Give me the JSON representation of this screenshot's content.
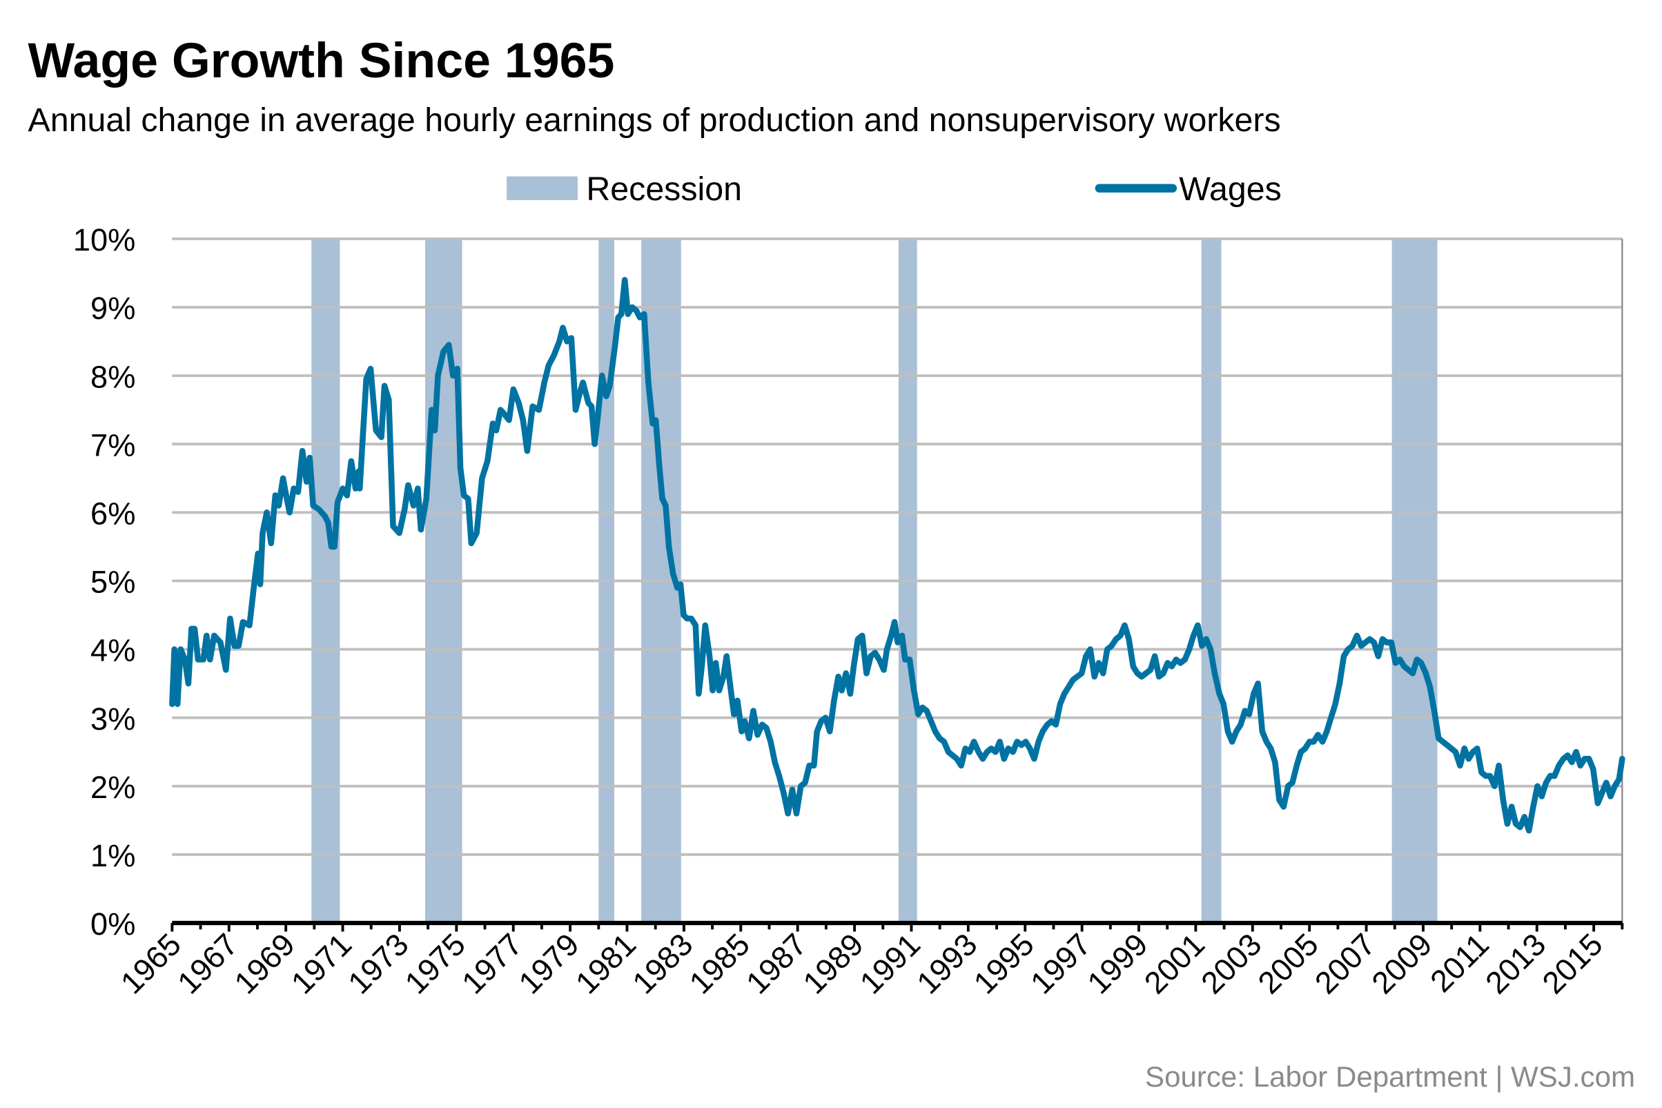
{
  "chart_data": {
    "type": "line",
    "title": "Wage Growth Since 1965",
    "subtitle": "Annual change in average hourly earnings of production and nonsupervisory workers",
    "xlabel": "",
    "ylabel": "",
    "xlim": [
      1965,
      2016
    ],
    "ylim": [
      0,
      10
    ],
    "grid": true,
    "legend_position": "top-center",
    "y_ticks": [
      0,
      1,
      2,
      3,
      4,
      5,
      6,
      7,
      8,
      9,
      10
    ],
    "y_tick_labels": [
      "0%",
      "1%",
      "2%",
      "3%",
      "4%",
      "5%",
      "6%",
      "7%",
      "8%",
      "9%",
      "10%"
    ],
    "x_ticks": [
      1965,
      1967,
      1969,
      1971,
      1973,
      1975,
      1977,
      1979,
      1981,
      1983,
      1985,
      1987,
      1989,
      1991,
      1993,
      1995,
      1997,
      1999,
      2001,
      2003,
      2005,
      2007,
      2009,
      2011,
      2013,
      2015
    ],
    "x_tick_labels": [
      "1965",
      "1967",
      "1969",
      "1971",
      "1973",
      "1975",
      "1977",
      "1979",
      "1981",
      "1983",
      "1985",
      "1987",
      "1989",
      "1991",
      "1993",
      "1995",
      "1997",
      "1999",
      "2001",
      "2003",
      "2005",
      "2007",
      "2009",
      "2011",
      "2013",
      "2015"
    ],
    "legend": [
      {
        "name": "Recession",
        "kind": "band",
        "color": "#A9C0D6"
      },
      {
        "name": "Wages",
        "kind": "line",
        "color": "#0073A3"
      }
    ],
    "recessions": [
      [
        1969.9,
        1970.9
      ],
      [
        1973.9,
        1975.2
      ],
      [
        1980.0,
        1980.55
      ],
      [
        1981.5,
        1982.9
      ],
      [
        1990.55,
        1991.2
      ],
      [
        2001.2,
        2001.9
      ],
      [
        2007.9,
        2009.5
      ]
    ],
    "series": [
      {
        "name": "Wages",
        "color": "#0073A3",
        "x": [
          1965.0,
          1965.08,
          1965.19,
          1965.3,
          1965.45,
          1965.57,
          1965.68,
          1965.79,
          1965.91,
          1966.1,
          1966.21,
          1966.33,
          1966.48,
          1966.7,
          1966.89,
          1967.04,
          1967.19,
          1967.34,
          1967.49,
          1967.72,
          1967.87,
          1968.02,
          1968.1,
          1968.18,
          1968.33,
          1968.48,
          1968.63,
          1968.75,
          1968.9,
          1969.01,
          1969.13,
          1969.28,
          1969.43,
          1969.58,
          1969.73,
          1969.84,
          1969.96,
          1970.15,
          1970.37,
          1970.49,
          1970.6,
          1970.71,
          1970.82,
          1971.0,
          1971.15,
          1971.3,
          1971.45,
          1971.56,
          1971.6,
          1971.83,
          1971.98,
          1972.17,
          1972.36,
          1972.47,
          1972.62,
          1972.77,
          1972.99,
          1973.18,
          1973.3,
          1973.49,
          1973.64,
          1973.75,
          1973.94,
          1974.13,
          1974.24,
          1974.35,
          1974.54,
          1974.73,
          1974.88,
          1975.03,
          1975.14,
          1975.26,
          1975.41,
          1975.52,
          1975.71,
          1975.9,
          1976.09,
          1976.28,
          1976.4,
          1976.55,
          1976.66,
          1976.85,
          1977.0,
          1977.19,
          1977.34,
          1977.49,
          1977.68,
          1977.9,
          1978.09,
          1978.24,
          1978.43,
          1978.62,
          1978.74,
          1978.89,
          1979.04,
          1979.19,
          1979.34,
          1979.45,
          1979.64,
          1979.75,
          1979.86,
          1979.97,
          1980.12,
          1980.27,
          1980.39,
          1980.58,
          1980.69,
          1980.8,
          1980.92,
          1981.03,
          1981.18,
          1981.33,
          1981.45,
          1981.6,
          1981.75,
          1981.9,
          1982.01,
          1982.13,
          1982.24,
          1982.36,
          1982.47,
          1982.62,
          1982.77,
          1982.88,
          1982.99,
          1983.11,
          1983.26,
          1983.41,
          1983.52,
          1983.63,
          1983.75,
          1983.9,
          1984.01,
          1984.12,
          1984.24,
          1984.39,
          1984.5,
          1984.65,
          1984.76,
          1984.88,
          1985.03,
          1985.14,
          1985.29,
          1985.44,
          1985.59,
          1985.75,
          1985.9,
          1986.05,
          1986.2,
          1986.35,
          1986.51,
          1986.66,
          1986.81,
          1986.96,
          1987.11,
          1987.26,
          1987.41,
          1987.57,
          1987.68,
          1987.83,
          1987.98,
          1988.13,
          1988.28,
          1988.43,
          1988.55,
          1988.7,
          1988.85,
          1988.97,
          1989.12,
          1989.27,
          1989.42,
          1989.57,
          1989.72,
          1989.87,
          1990.03,
          1990.14,
          1990.29,
          1990.41,
          1990.52,
          1990.67,
          1990.78,
          1990.94,
          1991.09,
          1991.24,
          1991.39,
          1991.54,
          1991.69,
          1991.84,
          1991.99,
          1992.15,
          1992.3,
          1992.45,
          1992.6,
          1992.75,
          1992.9,
          1993.05,
          1993.2,
          1993.36,
          1993.51,
          1993.66,
          1993.81,
          1993.96,
          1994.11,
          1994.26,
          1994.41,
          1994.57,
          1994.72,
          1994.87,
          1995.02,
          1995.17,
          1995.32,
          1995.47,
          1995.62,
          1995.78,
          1995.93,
          1996.08,
          1996.23,
          1996.38,
          1996.53,
          1996.68,
          1996.83,
          1996.99,
          1997.14,
          1997.29,
          1997.44,
          1997.59,
          1997.74,
          1997.89,
          1998.04,
          1998.2,
          1998.35,
          1998.5,
          1998.65,
          1998.8,
          1998.95,
          1999.1,
          1999.25,
          1999.41,
          1999.56,
          1999.71,
          1999.86,
          2000.01,
          2000.16,
          2000.31,
          2000.46,
          2000.62,
          2000.77,
          2000.92,
          2001.07,
          2001.22,
          2001.37,
          2001.52,
          2001.67,
          2001.83,
          2001.98,
          2002.13,
          2002.28,
          2002.43,
          2002.58,
          2002.73,
          2002.88,
          2003.04,
          2003.19,
          2003.34,
          2003.49,
          2003.64,
          2003.79,
          2003.94,
          2004.09,
          2004.25,
          2004.4,
          2004.55,
          2004.7,
          2004.85,
          2005.0,
          2005.15,
          2005.3,
          2005.46,
          2005.61,
          2005.76,
          2005.91,
          2006.06,
          2006.21,
          2006.36,
          2006.51,
          2006.67,
          2006.82,
          2006.97,
          2007.12,
          2007.27,
          2007.42,
          2007.57,
          2007.72,
          2007.88,
          2008.03,
          2008.18,
          2008.33,
          2008.48,
          2008.63,
          2008.78,
          2008.93,
          2009.09,
          2009.24,
          2009.39,
          2009.54,
          2009.69,
          2009.84,
          2009.99,
          2010.14,
          2010.3,
          2010.45,
          2010.6,
          2010.75,
          2010.9,
          2011.05,
          2011.2,
          2011.35,
          2011.51,
          2011.66,
          2011.81,
          2011.96,
          2012.11,
          2012.26,
          2012.41,
          2012.56,
          2012.72,
          2012.87,
          2013.02,
          2013.17,
          2013.32,
          2013.47,
          2013.62,
          2013.77,
          2013.93,
          2014.08,
          2014.23,
          2014.38,
          2014.53,
          2014.68,
          2014.83,
          2014.98,
          2015.14,
          2015.29,
          2015.44,
          2015.59,
          2015.74,
          2015.89,
          2016.0
        ],
        "values": [
          3.2,
          4.0,
          3.2,
          4.0,
          3.85,
          3.5,
          4.3,
          4.3,
          3.85,
          3.85,
          4.2,
          3.85,
          4.2,
          4.1,
          3.7,
          4.45,
          4.05,
          4.05,
          4.4,
          4.35,
          4.9,
          5.4,
          4.95,
          5.7,
          6.0,
          5.55,
          6.25,
          6.1,
          6.5,
          6.25,
          6.0,
          6.35,
          6.3,
          6.9,
          6.45,
          6.8,
          6.1,
          6.05,
          5.95,
          5.85,
          5.5,
          5.5,
          6.15,
          6.35,
          6.25,
          6.75,
          6.35,
          6.6,
          6.35,
          7.95,
          8.1,
          7.2,
          7.1,
          7.85,
          7.65,
          5.8,
          5.7,
          6.05,
          6.4,
          6.1,
          6.35,
          5.75,
          6.2,
          7.5,
          7.2,
          8.0,
          8.35,
          8.45,
          8.0,
          8.1,
          6.65,
          6.25,
          6.2,
          5.55,
          5.7,
          6.5,
          6.75,
          7.3,
          7.2,
          7.5,
          7.45,
          7.35,
          7.8,
          7.6,
          7.35,
          6.9,
          7.55,
          7.5,
          7.9,
          8.15,
          8.3,
          8.5,
          8.7,
          8.5,
          8.55,
          7.5,
          7.75,
          7.9,
          7.6,
          7.55,
          7.0,
          7.4,
          8.0,
          7.7,
          7.85,
          8.45,
          8.85,
          8.9,
          9.4,
          8.9,
          9.0,
          8.95,
          8.85,
          8.9,
          7.9,
          7.3,
          7.35,
          6.7,
          6.2,
          6.1,
          5.5,
          5.1,
          4.9,
          4.95,
          4.5,
          4.45,
          4.45,
          4.35,
          3.35,
          3.75,
          4.35,
          3.9,
          3.4,
          3.8,
          3.4,
          3.6,
          3.9,
          3.4,
          3.05,
          3.25,
          2.8,
          2.95,
          2.7,
          3.1,
          2.75,
          2.9,
          2.85,
          2.65,
          2.35,
          2.15,
          1.9,
          1.6,
          1.95,
          1.6,
          2.0,
          2.05,
          2.3,
          2.3,
          2.8,
          2.95,
          3.0,
          2.8,
          3.25,
          3.6,
          3.4,
          3.65,
          3.35,
          3.75,
          4.15,
          4.2,
          3.65,
          3.9,
          3.95,
          3.85,
          3.7,
          4.0,
          4.2,
          4.4,
          4.1,
          4.2,
          3.85,
          3.85,
          3.4,
          3.05,
          3.15,
          3.1,
          2.95,
          2.8,
          2.7,
          2.65,
          2.5,
          2.45,
          2.4,
          2.3,
          2.55,
          2.5,
          2.65,
          2.5,
          2.4,
          2.5,
          2.55,
          2.5,
          2.65,
          2.4,
          2.55,
          2.5,
          2.65,
          2.6,
          2.65,
          2.55,
          2.4,
          2.65,
          2.8,
          2.9,
          2.95,
          2.9,
          3.2,
          3.35,
          3.45,
          3.55,
          3.6,
          3.65,
          3.9,
          4.0,
          3.6,
          3.8,
          3.65,
          4.0,
          4.05,
          4.15,
          4.2,
          4.35,
          4.15,
          3.75,
          3.65,
          3.6,
          3.65,
          3.7,
          3.9,
          3.6,
          3.65,
          3.8,
          3.75,
          3.85,
          3.8,
          3.85,
          4.0,
          4.2,
          4.35,
          4.05,
          4.15,
          4.0,
          3.65,
          3.35,
          3.2,
          2.8,
          2.65,
          2.8,
          2.9,
          3.1,
          3.05,
          3.35,
          3.5,
          2.8,
          2.65,
          2.55,
          2.35,
          1.8,
          1.7,
          2.0,
          2.05,
          2.3,
          2.5,
          2.55,
          2.65,
          2.65,
          2.75,
          2.65,
          2.8,
          3.0,
          3.2,
          3.5,
          3.9,
          4.0,
          4.05,
          4.2,
          4.05,
          4.1,
          4.15,
          4.1,
          3.9,
          4.15,
          4.1,
          4.1,
          3.8,
          3.85,
          3.75,
          3.7,
          3.65,
          3.85,
          3.8,
          3.65,
          3.45,
          3.1,
          2.7,
          2.65,
          2.6,
          2.55,
          2.5,
          2.3,
          2.55,
          2.4,
          2.5,
          2.55,
          2.2,
          2.15,
          2.15,
          2.0,
          2.3,
          1.8,
          1.45,
          1.7,
          1.45,
          1.4,
          1.55,
          1.35,
          1.7,
          2.0,
          1.85,
          2.05,
          2.15,
          2.15,
          2.3,
          2.4,
          2.45,
          2.35,
          2.5,
          2.3,
          2.4,
          2.4,
          2.25,
          1.75,
          1.9,
          2.05,
          1.85,
          2.0,
          2.1,
          2.4
        ]
      }
    ],
    "source": "Source: Labor Department  |  WSJ.com"
  }
}
